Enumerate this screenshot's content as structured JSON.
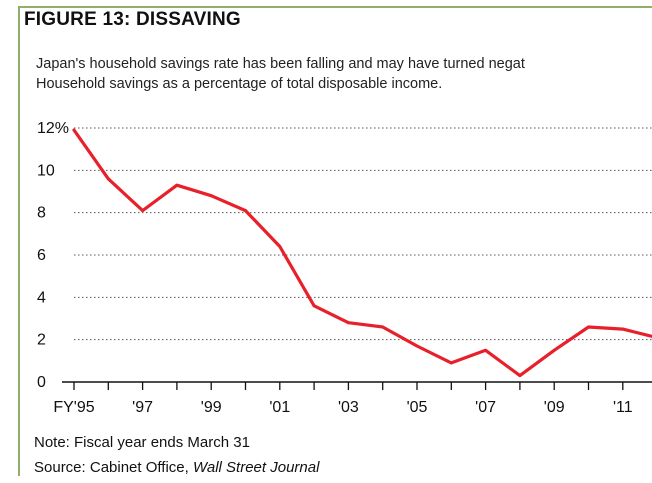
{
  "figure": {
    "title": "FIGURE 13: DISSAVING",
    "subtitle_line1": "Japan's household savings rate has been falling and may have turned negat",
    "subtitle_line2": "Household savings as a percentage of total disposable income."
  },
  "chart_data": {
    "type": "line",
    "x": [
      1995,
      1996,
      1997,
      1998,
      1999,
      2000,
      2001,
      2002,
      2003,
      2004,
      2005,
      2006,
      2007,
      2008,
      2009,
      2010,
      2011,
      2012
    ],
    "series": [
      {
        "values": [
          11.9,
          9.6,
          8.1,
          9.3,
          8.8,
          8.1,
          6.4,
          3.6,
          2.8,
          2.6,
          1.7,
          0.9,
          1.5,
          0.3,
          1.5,
          2.6,
          2.5,
          2.1
        ]
      }
    ],
    "ylim": [
      0,
      12
    ],
    "y_ticks": [
      "0",
      "2",
      "4",
      "6",
      "8",
      "10",
      "12%"
    ],
    "x_ticks": [
      "FY'95",
      "'97",
      "'99",
      "'01",
      "'03",
      "'05",
      "'07",
      "'09",
      "'11"
    ],
    "grid": "horizontal dotted",
    "line_color": "#e8202a"
  },
  "footer": {
    "note": "Note: Fiscal year ends March 31",
    "source_prefix": "Source: Cabinet Office, ",
    "source_italic": "Wall Street Journal"
  }
}
